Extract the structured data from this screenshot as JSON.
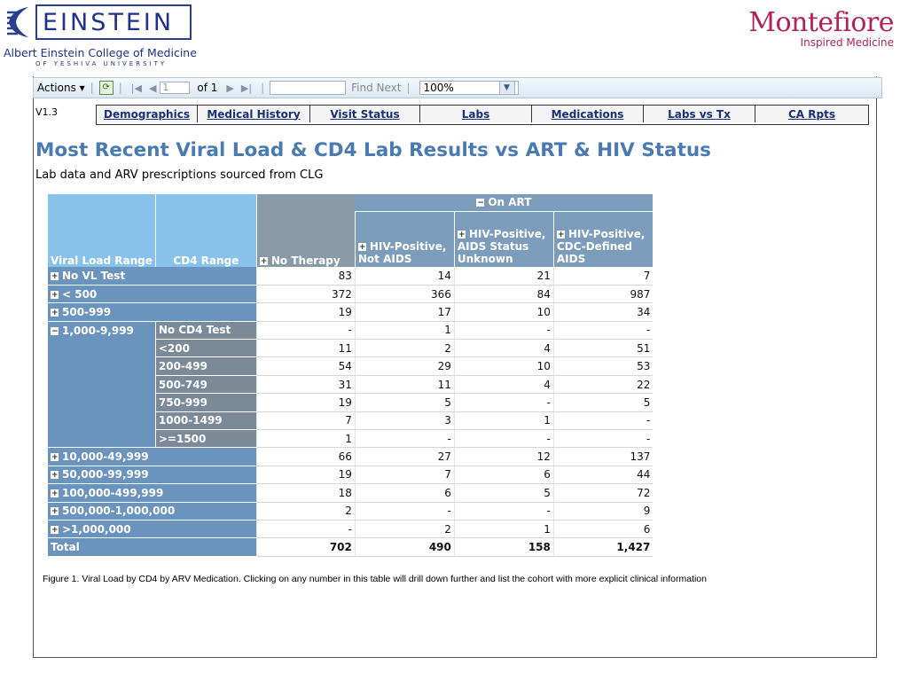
{
  "header": {
    "einstein_word": "EINSTEIN",
    "einstein_college": "Albert Einstein College of Medicine",
    "einstein_university": "OF YESHIVA UNIVERSITY",
    "montefiore_name": "Montefiore",
    "montefiore_tag": "Inspired Medicine"
  },
  "toolbar": {
    "actions_label": "Actions ▾",
    "page_value": "1",
    "page_of": "of 1",
    "find_next": "Find Next",
    "zoom_value": "100%"
  },
  "version": "V1.3",
  "tabs": [
    "Demographics",
    "Medical History",
    "Visit Status",
    "Labs",
    "Medications",
    "Labs vs Tx",
    "CA Rpts"
  ],
  "title": "Most Recent Viral Load & CD4 Lab Results vs ART & HIV Status",
  "subtitle": "Lab data and ARV prescriptions sourced from CLG",
  "table": {
    "col_viral_load": "Viral Load Range",
    "col_cd4": "CD4 Range",
    "col_no_therapy": "No Therapy",
    "col_on_art": "On ART",
    "col_not_aids": "HIV-Positive, Not AIDS",
    "col_unknown": "HIV-Positive, AIDS Status Unknown",
    "col_cdc_aids": "HIV-Positive, CDC-Defined AIDS",
    "rows": [
      {
        "label": "No VL Test",
        "v": [
          "83",
          "14",
          "21",
          "7"
        ]
      },
      {
        "label": "< 500",
        "v": [
          "372",
          "366",
          "84",
          "987"
        ]
      },
      {
        "label": "500-999",
        "v": [
          "19",
          "17",
          "10",
          "34"
        ]
      }
    ],
    "group_label": "1,000-9,999",
    "group_rows": [
      {
        "cd4": "No CD4 Test",
        "v": [
          "-",
          "1",
          "-",
          "-"
        ]
      },
      {
        "cd4": "<200",
        "v": [
          "11",
          "2",
          "4",
          "51"
        ]
      },
      {
        "cd4": "200-499",
        "v": [
          "54",
          "29",
          "10",
          "53"
        ]
      },
      {
        "cd4": "500-749",
        "v": [
          "31",
          "11",
          "4",
          "22"
        ]
      },
      {
        "cd4": "750-999",
        "v": [
          "19",
          "5",
          "-",
          "5"
        ]
      },
      {
        "cd4": "1000-1499",
        "v": [
          "7",
          "3",
          "1",
          "-"
        ]
      },
      {
        "cd4": ">=1500",
        "v": [
          "1",
          "-",
          "-",
          "-"
        ]
      }
    ],
    "rows2": [
      {
        "label": "10,000-49,999",
        "v": [
          "66",
          "27",
          "12",
          "137"
        ]
      },
      {
        "label": "50,000-99,999",
        "v": [
          "19",
          "7",
          "6",
          "44"
        ]
      },
      {
        "label": "100,000-499,999",
        "v": [
          "18",
          "6",
          "5",
          "72"
        ]
      },
      {
        "label": "500,000-1,000,000",
        "v": [
          "2",
          "-",
          "-",
          "9"
        ]
      },
      {
        "label": ">1,000,000",
        "v": [
          "-",
          "2",
          "1",
          "6"
        ]
      }
    ],
    "total_label": "Total",
    "total": [
      "702",
      "490",
      "158",
      "1,427"
    ]
  },
  "caption": "Figure 1. Viral Load by CD4 by ARV Medication. Clicking on any number in this table will drill down further and list the cohort with more explicit clinical information"
}
